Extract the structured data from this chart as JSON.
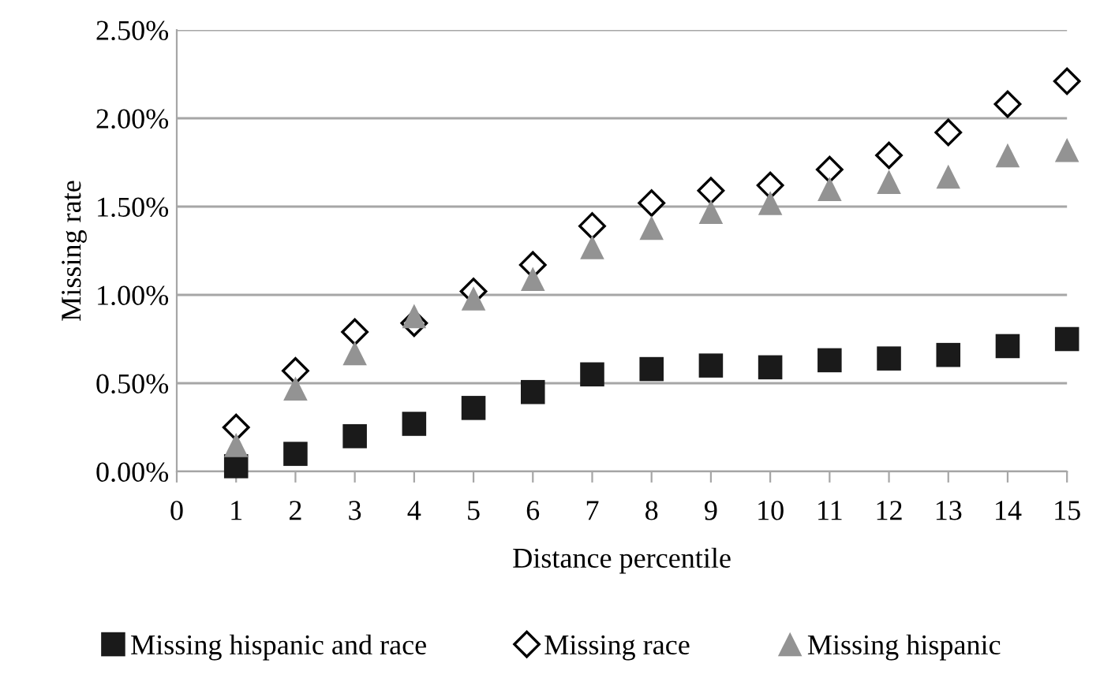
{
  "chart_data": {
    "type": "scatter",
    "xlabel": "Distance percentile",
    "ylabel": "Missing rate",
    "x": [
      1,
      2,
      3,
      4,
      5,
      6,
      7,
      8,
      9,
      10,
      11,
      12,
      13,
      14,
      15
    ],
    "series": [
      {
        "name": "Missing hispanic and race",
        "color": "#1a1a1a",
        "marker": "square",
        "values": [
          0.03,
          0.1,
          0.2,
          0.27,
          0.36,
          0.45,
          0.55,
          0.58,
          0.6,
          0.59,
          0.63,
          0.64,
          0.66,
          0.71,
          0.75
        ]
      },
      {
        "name": "Missing race",
        "color": "#000000",
        "marker": "diamond",
        "values": [
          0.25,
          0.57,
          0.79,
          0.84,
          1.02,
          1.17,
          1.39,
          1.52,
          1.59,
          1.62,
          1.71,
          1.79,
          1.92,
          2.08,
          2.21
        ]
      },
      {
        "name": "Missing hispanic",
        "color": "#939393",
        "marker": "triangle",
        "values": [
          0.15,
          0.47,
          0.67,
          0.88,
          0.98,
          1.09,
          1.27,
          1.38,
          1.47,
          1.52,
          1.6,
          1.64,
          1.67,
          1.79,
          1.82
        ]
      }
    ],
    "xlim": [
      0,
      15
    ],
    "xticks": [
      0,
      1,
      2,
      3,
      4,
      5,
      6,
      7,
      8,
      9,
      10,
      11,
      12,
      13,
      14,
      15
    ],
    "ylim": [
      0,
      2.5
    ],
    "yticks": [
      {
        "value": 0,
        "label": "0.00%"
      },
      {
        "value": 0.5,
        "label": "0.50%"
      },
      {
        "value": 1,
        "label": "1.00%"
      },
      {
        "value": 1.5,
        "label": "1.50%"
      },
      {
        "value": 2,
        "label": "2.00%"
      },
      {
        "value": 2.5,
        "label": "2.50%"
      }
    ],
    "grid": "y",
    "legend": "bottom"
  }
}
